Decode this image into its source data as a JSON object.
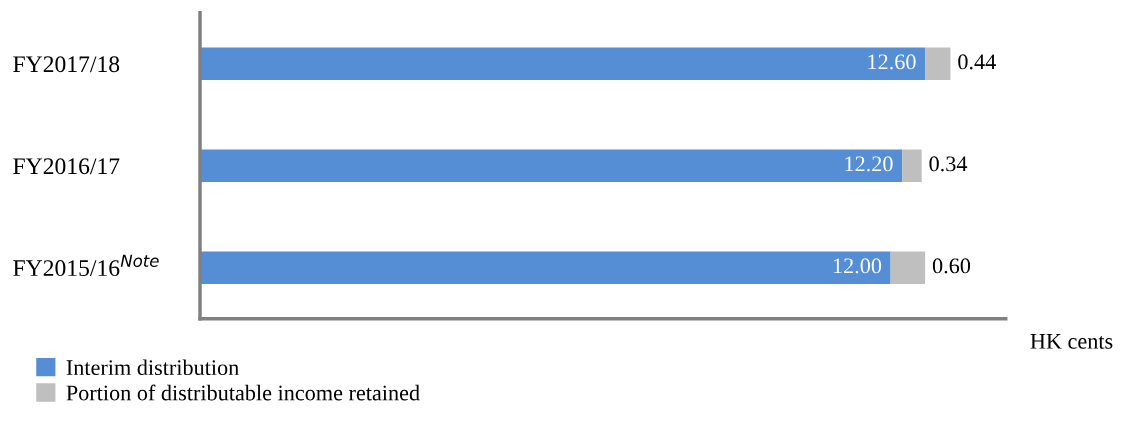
{
  "chart_data": {
    "type": "bar",
    "orientation": "horizontal",
    "stacked": true,
    "categories": [
      "FY2017/18",
      "FY2016/17",
      "FY2015/16$^{Note}$"
    ],
    "series": [
      {
        "name": "Interim distribution",
        "color": "#558ed5",
        "values": [
          12.6,
          12.2,
          12.0
        ],
        "value_labels": [
          "12.60",
          "12.20",
          "12.00"
        ]
      },
      {
        "name": "Portion of distributable income retained",
        "color": "#bfbfbf",
        "values": [
          0.44,
          0.34,
          0.6
        ],
        "value_labels": [
          "0.44",
          "0.34",
          "0.60"
        ]
      }
    ],
    "xlabel": "HK cents",
    "xlim": [
      0,
      14
    ],
    "tick_labels": "y",
    "grid": false,
    "legend": "bottom left"
  }
}
